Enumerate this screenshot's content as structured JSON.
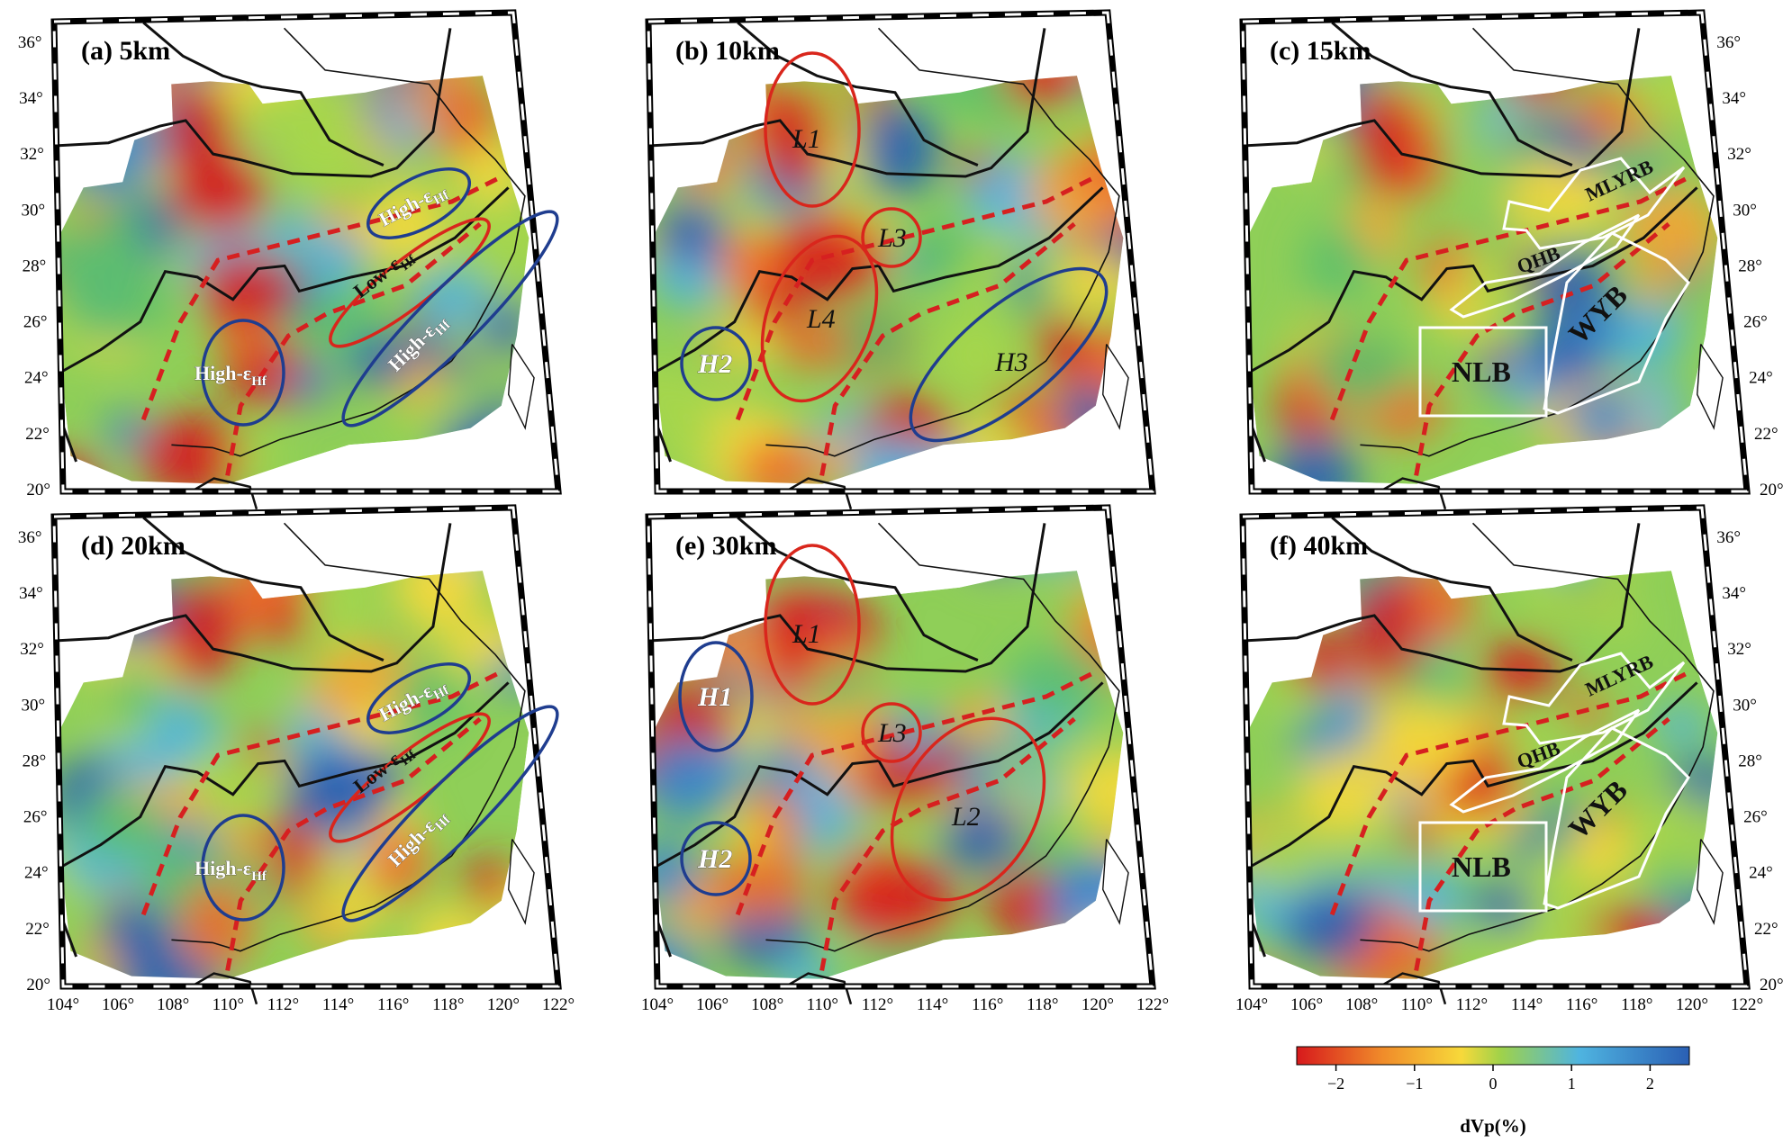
{
  "panels": [
    {
      "id": "a",
      "label": "(a) 5km",
      "depth_km": 5,
      "annotations": [
        {
          "text": "High-ε",
          "sub": "Hf",
          "color": "blue"
        },
        {
          "text": "Low-ε",
          "sub": "Hf",
          "color": "red"
        },
        {
          "text": "High-ε",
          "sub": "Hf",
          "color": "blue"
        },
        {
          "text": "High-ε",
          "sub": "Hf",
          "color": "blue"
        }
      ]
    },
    {
      "id": "b",
      "label": "(b) 10km",
      "depth_km": 10,
      "annotations": [
        {
          "text": "L1",
          "color": "red"
        },
        {
          "text": "L3",
          "color": "red"
        },
        {
          "text": "L4",
          "color": "red"
        },
        {
          "text": "H2",
          "color": "blue"
        },
        {
          "text": "H3",
          "color": "blue"
        }
      ]
    },
    {
      "id": "c",
      "label": "(c) 15km",
      "depth_km": 15,
      "annotations": [
        {
          "text": "MLYRB",
          "color": "white"
        },
        {
          "text": "QHB",
          "color": "white"
        },
        {
          "text": "WYB",
          "color": "white"
        },
        {
          "text": "NLB",
          "color": "white"
        }
      ]
    },
    {
      "id": "d",
      "label": "(d) 20km",
      "depth_km": 20,
      "annotations": [
        {
          "text": "High-ε",
          "sub": "Hf",
          "color": "blue"
        },
        {
          "text": "Low-ε",
          "sub": "Hf",
          "color": "red"
        },
        {
          "text": "High-ε",
          "sub": "Hf",
          "color": "blue"
        },
        {
          "text": "High-ε",
          "sub": "Hf",
          "color": "blue"
        }
      ]
    },
    {
      "id": "e",
      "label": "(e) 30km",
      "depth_km": 30,
      "annotations": [
        {
          "text": "L1",
          "color": "red"
        },
        {
          "text": "L3",
          "color": "red"
        },
        {
          "text": "L2",
          "color": "red"
        },
        {
          "text": "H1",
          "color": "blue"
        },
        {
          "text": "H2",
          "color": "blue"
        }
      ]
    },
    {
      "id": "f",
      "label": "(f) 40km",
      "depth_km": 40,
      "annotations": [
        {
          "text": "MLYRB",
          "color": "white"
        },
        {
          "text": "QHB",
          "color": "white"
        },
        {
          "text": "WYB",
          "color": "white"
        },
        {
          "text": "NLB",
          "color": "white"
        }
      ]
    }
  ],
  "lat_ticks_left": [
    "36°",
    "34°",
    "32°",
    "30°",
    "28°",
    "26°",
    "24°",
    "22°",
    "20°"
  ],
  "lat_ticks_right": [
    "36°",
    "34°",
    "32°",
    "30°",
    "28°",
    "26°",
    "24°",
    "22°",
    "20°"
  ],
  "lon_ticks": [
    "104°",
    "106°",
    "108°",
    "110°",
    "112°",
    "114°",
    "116°",
    "118°",
    "120°",
    "122°"
  ],
  "colorbar": {
    "title": "dVp(%)",
    "ticks": [
      "−2",
      "−1",
      "0",
      "1",
      "2"
    ],
    "range": [
      -2.5,
      2.5
    ],
    "colors": [
      "#d7191c",
      "#f08c2a",
      "#f7d93a",
      "#9fd24a",
      "#4fb4e0",
      "#2a5fb4"
    ]
  },
  "styles": {
    "anomaly_red": "#d9261c",
    "anomaly_blue": "#1f3d8f",
    "suture_dash": "#d62020",
    "basin_outline": "#ffffff"
  }
}
